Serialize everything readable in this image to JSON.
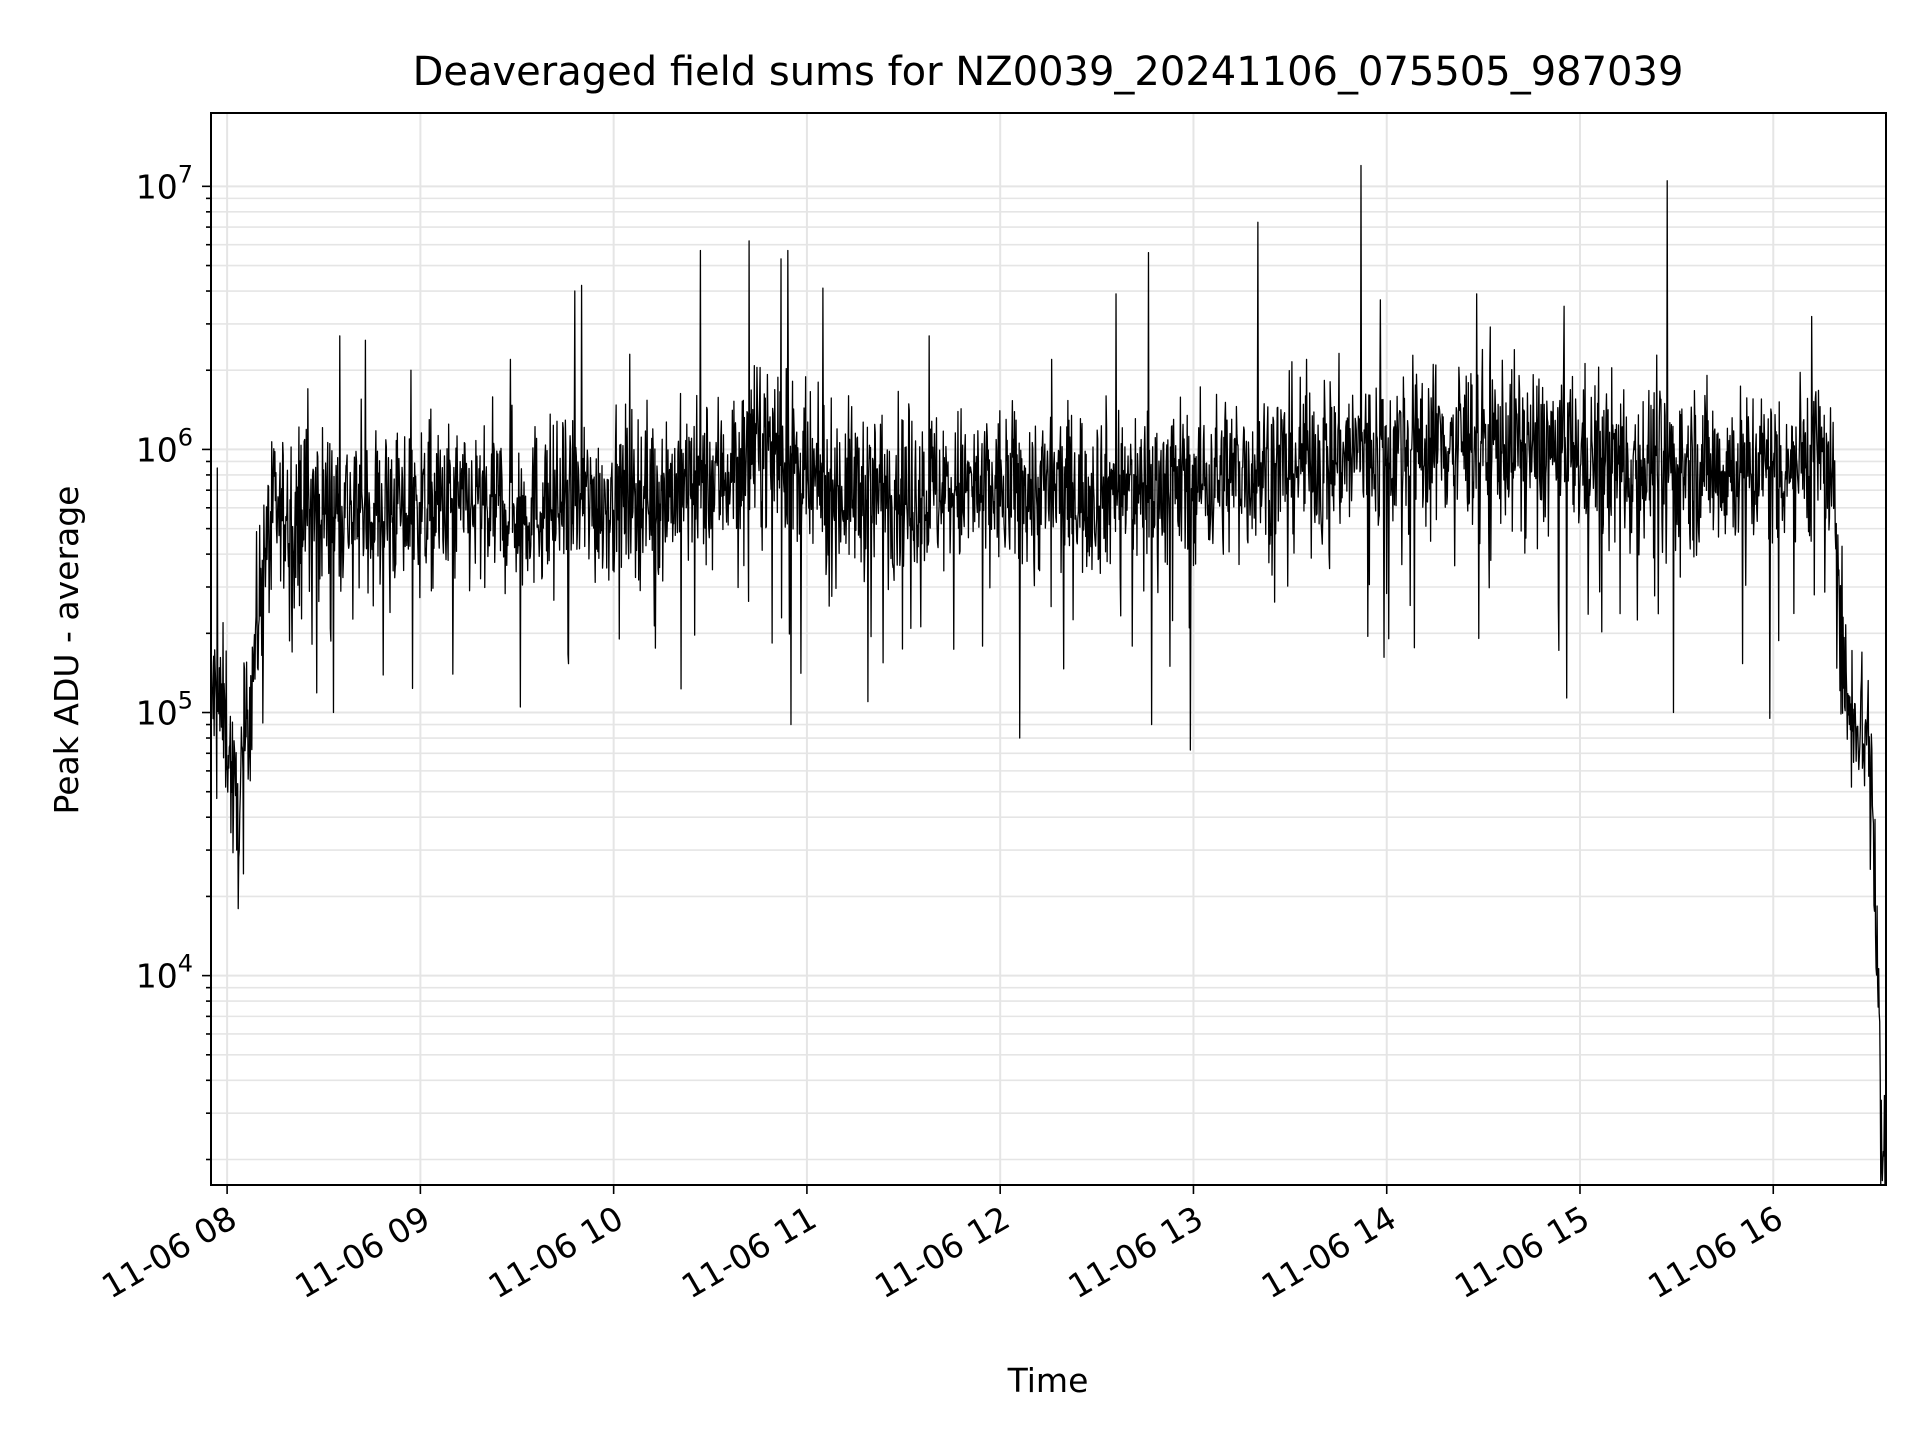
{
  "chart_data": {
    "type": "line",
    "title": "Deaveraged field sums for NZ0039_20241106_075505_987039",
    "xlabel": "Time",
    "ylabel": "Peak ADU - average",
    "y_scale": "log",
    "ylim": [
      1600,
      19000000
    ],
    "xlim": [
      "2024-11-06 07:55",
      "2024-11-06 16:35"
    ],
    "grid": "on (major and minor, light gray)",
    "line_color": "#000000",
    "x_ticks": [
      "11-06 08",
      "11-06 09",
      "11-06 10",
      "11-06 11",
      "11-06 12",
      "11-06 13",
      "11-06 14",
      "11-06 15",
      "11-06 16"
    ],
    "y_ticks": [
      {
        "base": "10",
        "exp": "4",
        "value": 10000
      },
      {
        "base": "10",
        "exp": "5",
        "value": 100000
      },
      {
        "base": "10",
        "exp": "6",
        "value": 1000000
      },
      {
        "base": "10",
        "exp": "7",
        "value": 10000000
      }
    ],
    "series": [
      {
        "envelope": [
          [
            "2024-11-06 07:55",
            120000
          ],
          [
            "2024-11-06 08:00",
            90000
          ],
          [
            "2024-11-06 08:03",
            35000
          ],
          [
            "2024-11-06 08:08",
            150000
          ],
          [
            "2024-11-06 08:12",
            450000
          ],
          [
            "2024-11-06 08:15",
            550000
          ],
          [
            "2024-11-06 08:30",
            600000
          ],
          [
            "2024-11-06 09:00",
            600000
          ],
          [
            "2024-11-06 09:30",
            600000
          ],
          [
            "2024-11-06 10:00",
            650000
          ],
          [
            "2024-11-06 10:30",
            750000
          ],
          [
            "2024-11-06 10:50",
            1100000
          ],
          [
            "2024-11-06 11:00",
            700000
          ],
          [
            "2024-11-06 11:30",
            700000
          ],
          [
            "2024-11-06 12:00",
            700000
          ],
          [
            "2024-11-06 12:30",
            700000
          ],
          [
            "2024-11-06 13:00",
            750000
          ],
          [
            "2024-11-06 13:30",
            900000
          ],
          [
            "2024-11-06 14:00",
            1000000
          ],
          [
            "2024-11-06 14:30",
            1100000
          ],
          [
            "2024-11-06 15:00",
            950000
          ],
          [
            "2024-11-06 15:30",
            850000
          ],
          [
            "2024-11-06 16:00",
            850000
          ],
          [
            "2024-11-06 16:15",
            1000000
          ],
          [
            "2024-11-06 16:20",
            500000
          ],
          [
            "2024-11-06 16:22",
            120000
          ],
          [
            "2024-11-06 16:30",
            80000
          ],
          [
            "2024-11-06 16:32",
            15000
          ],
          [
            "2024-11-06 16:34",
            2300
          ]
        ],
        "spikes": [
          [
            "2024-11-06 07:57",
            850000
          ],
          [
            "2024-11-06 08:03",
            30000
          ],
          [
            "2024-11-06 08:25",
            1700000
          ],
          [
            "2024-11-06 08:33",
            100000
          ],
          [
            "2024-11-06 08:35",
            2700000
          ],
          [
            "2024-11-06 08:43",
            2600000
          ],
          [
            "2024-11-06 08:57",
            2000000
          ],
          [
            "2024-11-06 09:10",
            140000
          ],
          [
            "2024-11-06 09:28",
            2200000
          ],
          [
            "2024-11-06 09:31",
            105000
          ],
          [
            "2024-11-06 09:48",
            4000000
          ],
          [
            "2024-11-06 09:50",
            4200000
          ],
          [
            "2024-11-06 10:05",
            2300000
          ],
          [
            "2024-11-06 10:27",
            5700000
          ],
          [
            "2024-11-06 10:42",
            6200000
          ],
          [
            "2024-11-06 10:52",
            5300000
          ],
          [
            "2024-11-06 10:54",
            5700000
          ],
          [
            "2024-11-06 10:55",
            90000
          ],
          [
            "2024-11-06 11:05",
            4100000
          ],
          [
            "2024-11-06 11:19",
            110000
          ],
          [
            "2024-11-06 11:38",
            2700000
          ],
          [
            "2024-11-06 12:06",
            80000
          ],
          [
            "2024-11-06 12:16",
            2200000
          ],
          [
            "2024-11-06 12:36",
            3900000
          ],
          [
            "2024-11-06 12:46",
            5600000
          ],
          [
            "2024-11-06 12:47",
            90000
          ],
          [
            "2024-11-06 12:59",
            72000
          ],
          [
            "2024-11-06 13:20",
            7300000
          ],
          [
            "2024-11-06 13:52",
            12000000
          ],
          [
            "2024-11-06 13:58",
            3700000
          ],
          [
            "2024-11-06 14:28",
            3900000
          ],
          [
            "2024-11-06 14:55",
            3500000
          ],
          [
            "2024-11-06 15:27",
            10500000
          ],
          [
            "2024-11-06 15:29",
            100000
          ],
          [
            "2024-11-06 15:59",
            95000
          ],
          [
            "2024-11-06 16:12",
            3200000
          ]
        ]
      }
    ]
  }
}
